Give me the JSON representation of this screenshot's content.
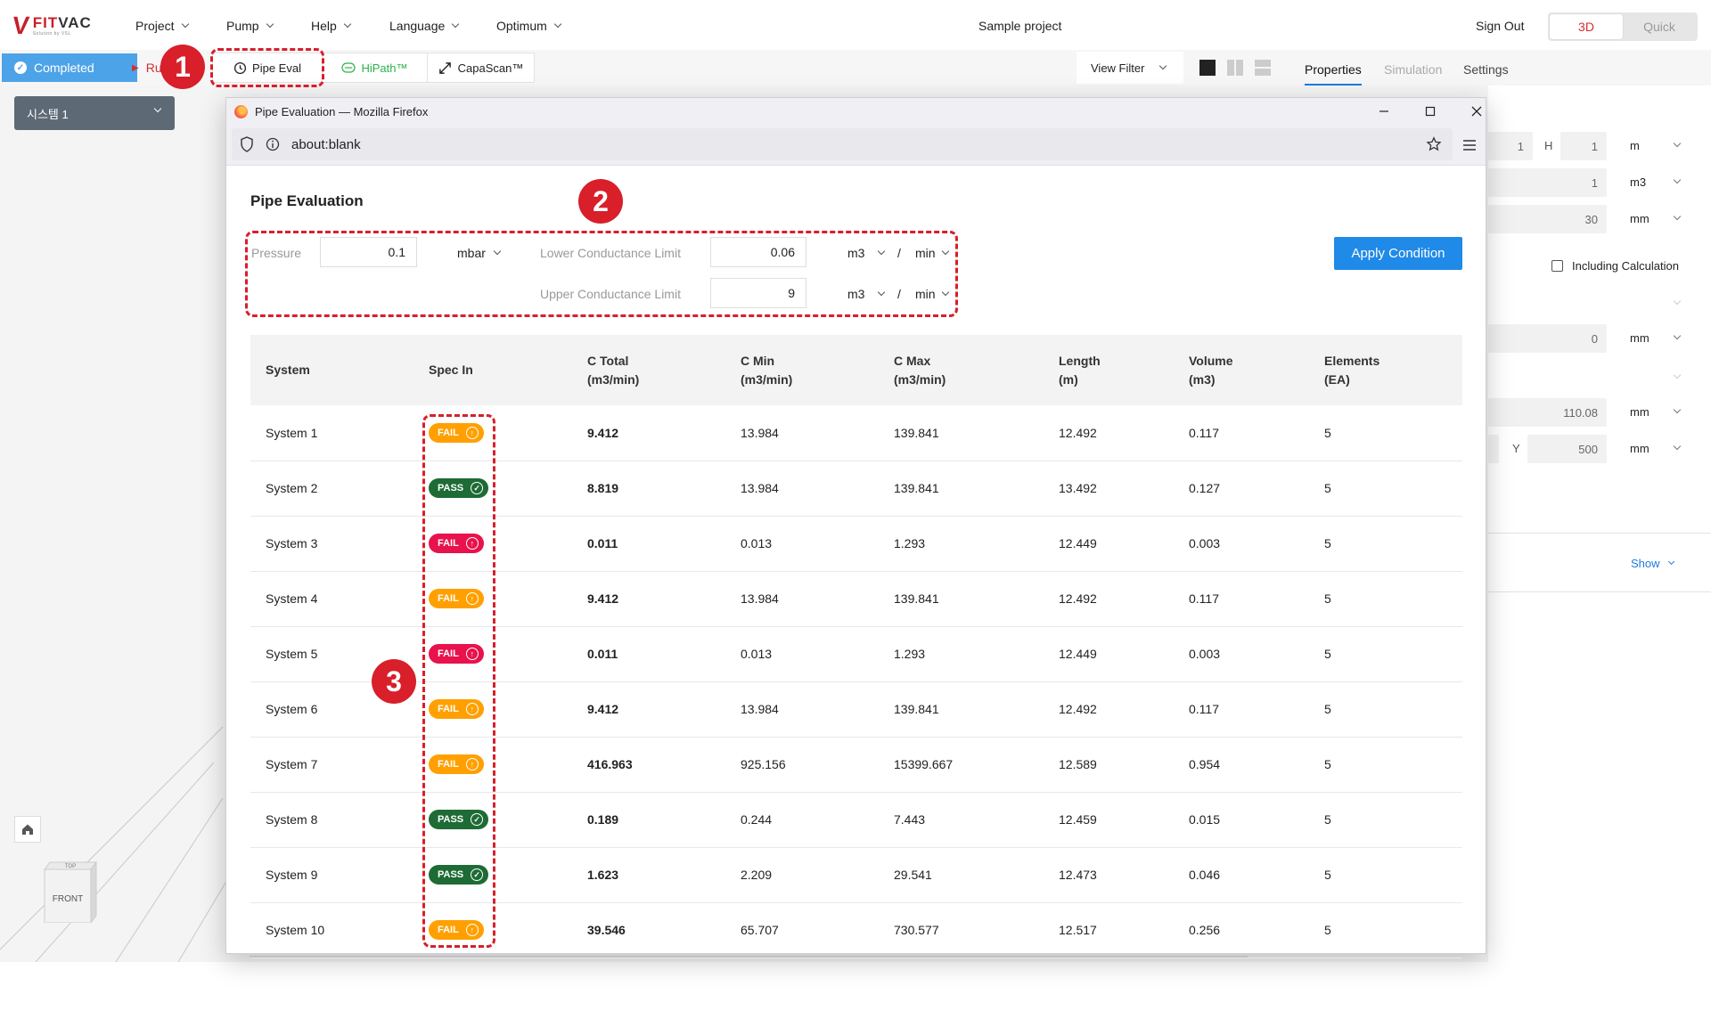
{
  "app": {
    "logo_mark": "V",
    "logo_name_1": "FIT",
    "logo_name_2": "VAC",
    "logo_tagline": "Solution by VSL",
    "menu": [
      "Project",
      "Pump",
      "Help",
      "Language",
      "Optimum"
    ],
    "project_name": "Sample project",
    "sign_out": "Sign Out",
    "view_modes": [
      "3D",
      "Quick"
    ],
    "active_view_mode": "3D",
    "accent_color": "#d32f2f",
    "primary_color": "#1f8ae8"
  },
  "toolbar": {
    "status": "Completed",
    "run": "Ru",
    "pipe_eval": "Pipe Eval",
    "hipath": "HiPath™",
    "capascan": "CapaScan™",
    "view_filter": "View Filter"
  },
  "right_panel": {
    "tabs": [
      "Properties",
      "Simulation",
      "Settings"
    ],
    "active_tab": "Properties",
    "fields": {
      "w": "1",
      "h_label": "H",
      "h": "1",
      "dim_unit": "m",
      "volume": "1",
      "volume_unit": "m3",
      "diameter": "30",
      "diameter_unit": "mm",
      "including_calc": "Including Calculation",
      "offset": "0",
      "offset_unit": "mm",
      "x": "110.08",
      "x_unit": "mm",
      "y_label": "Y",
      "y": "500",
      "y_unit": "mm"
    },
    "show_link": "Show"
  },
  "left_panel": {
    "system_select": "시스템 1",
    "cube_top": "TOP",
    "cube_front": "FRONT"
  },
  "browser": {
    "title": "Pipe Evaluation — Mozilla Firefox",
    "url": "about:blank"
  },
  "pipe_eval": {
    "title": "Pipe Evaluation",
    "pressure_label": "Pressure",
    "pressure_value": "0.1",
    "pressure_unit": "mbar",
    "lower_label": "Lower Conductance Limit",
    "lower_value": "0.06",
    "upper_label": "Upper Conductance Limit",
    "upper_value": "9",
    "flow_unit_volume": "m3",
    "flow_unit_sep": "/",
    "flow_unit_time": "min",
    "apply_button": "Apply Condition",
    "columns": [
      [
        "System",
        ""
      ],
      [
        "Spec In",
        ""
      ],
      [
        "C Total",
        "(m3/min)"
      ],
      [
        "C Min",
        "(m3/min)"
      ],
      [
        "C Max",
        "(m3/min)"
      ],
      [
        "Length",
        "(m)"
      ],
      [
        "Volume",
        "(m3)"
      ],
      [
        "Elements",
        "(EA)"
      ]
    ],
    "rows": [
      {
        "system": "System 1",
        "spec": "FAIL",
        "badge": "fail-orange",
        "c_total": "9.412",
        "c_min": "13.984",
        "c_max": "139.841",
        "length": "12.492",
        "volume": "0.117",
        "elements": "5"
      },
      {
        "system": "System 2",
        "spec": "PASS",
        "badge": "pass",
        "c_total": "8.819",
        "c_min": "13.984",
        "c_max": "139.841",
        "length": "13.492",
        "volume": "0.127",
        "elements": "5"
      },
      {
        "system": "System 3",
        "spec": "FAIL",
        "badge": "fail-red",
        "c_total": "0.011",
        "c_min": "0.013",
        "c_max": "1.293",
        "length": "12.449",
        "volume": "0.003",
        "elements": "5"
      },
      {
        "system": "System 4",
        "spec": "FAIL",
        "badge": "fail-orange",
        "c_total": "9.412",
        "c_min": "13.984",
        "c_max": "139.841",
        "length": "12.492",
        "volume": "0.117",
        "elements": "5"
      },
      {
        "system": "System 5",
        "spec": "FAIL",
        "badge": "fail-red",
        "c_total": "0.011",
        "c_min": "0.013",
        "c_max": "1.293",
        "length": "12.449",
        "volume": "0.003",
        "elements": "5"
      },
      {
        "system": "System 6",
        "spec": "FAIL",
        "badge": "fail-orange",
        "c_total": "9.412",
        "c_min": "13.984",
        "c_max": "139.841",
        "length": "12.492",
        "volume": "0.117",
        "elements": "5"
      },
      {
        "system": "System 7",
        "spec": "FAIL",
        "badge": "fail-orange",
        "c_total": "416.963",
        "c_min": "925.156",
        "c_max": "15399.667",
        "length": "12.589",
        "volume": "0.954",
        "elements": "5"
      },
      {
        "system": "System 8",
        "spec": "PASS",
        "badge": "pass",
        "c_total": "0.189",
        "c_min": "0.244",
        "c_max": "7.443",
        "length": "12.459",
        "volume": "0.015",
        "elements": "5"
      },
      {
        "system": "System 9",
        "spec": "PASS",
        "badge": "pass",
        "c_total": "1.623",
        "c_min": "2.209",
        "c_max": "29.541",
        "length": "12.473",
        "volume": "0.046",
        "elements": "5"
      },
      {
        "system": "System 10",
        "spec": "FAIL",
        "badge": "fail-orange",
        "c_total": "39.546",
        "c_min": "65.707",
        "c_max": "730.577",
        "length": "12.517",
        "volume": "0.256",
        "elements": "5"
      }
    ]
  },
  "annotations": [
    "1",
    "2",
    "3"
  ]
}
